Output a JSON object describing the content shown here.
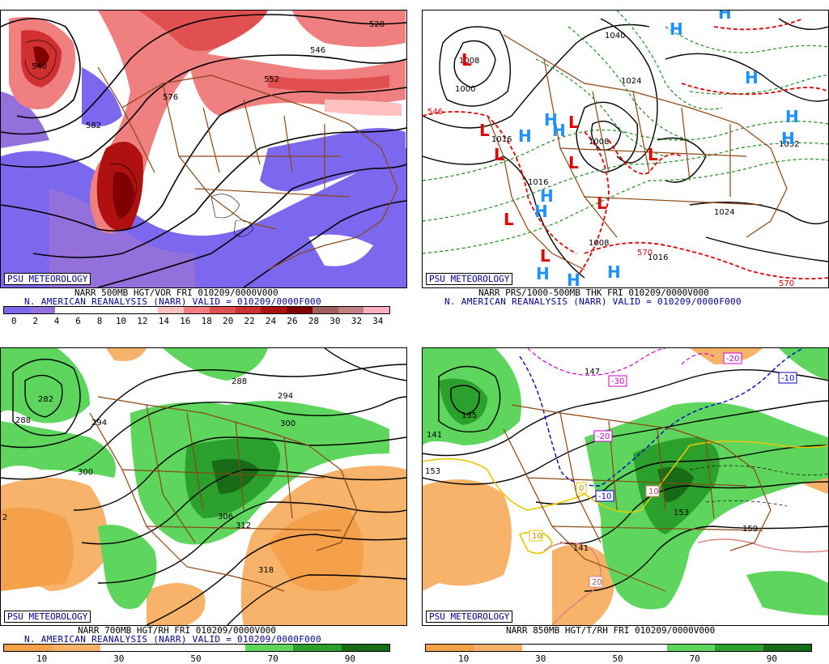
{
  "colors": {
    "vort_scale": [
      "#7b68ee",
      "#9370db",
      "#ffffff",
      "#ffffff",
      "#ffffff",
      "#ffffff",
      "#ffc0c0",
      "#f08080",
      "#e05050",
      "#d03030",
      "#b01010",
      "#800000",
      "#a06060",
      "#c08080",
      "#ffb0c0"
    ],
    "rh_scale": [
      "#f5a04a",
      "#f7b36a",
      "#ffffff",
      "#ffffff",
      "#ffffff",
      "#5ed65e",
      "#2ca02c",
      "#176b17"
    ]
  },
  "panels": [
    {
      "logo": "PSU METEOROLOGY",
      "caption1": "NARR 500MB HGT/VOR FRI 010209/0000V000",
      "caption2": "N. AMERICAN REANALYSIS (NARR) VALID = 010209/0000F000",
      "scale_labels": [
        "0",
        "2",
        "4",
        "6",
        "8",
        "10",
        "12",
        "14",
        "16",
        "18",
        "20",
        "22",
        "24",
        "26",
        "28",
        "30",
        "32",
        "34"
      ],
      "contour_labels": [
        "540",
        "528",
        "582",
        "552",
        "576",
        "546"
      ]
    },
    {
      "logo": "PSU METEOROLOGY",
      "caption1": "NARR PRS/1000-500MB THK FRI 010209/0000V000",
      "caption2": "N. AMERICAN REANALYSIS (NARR) VALID = 010209/0000F000",
      "contour_labels": [
        "1000",
        "1008",
        "1016",
        "1024",
        "1040",
        "1008",
        "1016",
        "1024",
        "1032",
        "546",
        "570",
        "570",
        "1008",
        "1016"
      ],
      "lows": [
        "L",
        "L",
        "L",
        "L",
        "L",
        "L",
        "L",
        "L",
        "L"
      ],
      "highs": [
        "H",
        "H",
        "H",
        "H",
        "H",
        "H",
        "H",
        "H",
        "H",
        "H",
        "H",
        "H",
        "H"
      ]
    },
    {
      "logo": "PSU METEOROLOGY",
      "caption1": "NARR 700MB HGT/RH FRI 010209/0000V000",
      "caption2": "N. AMERICAN REANALYSIS (NARR) VALID = 010209/0000F000",
      "scale_labels": [
        "10",
        "30",
        "50",
        "70",
        "90"
      ],
      "contour_labels": [
        "282",
        "288",
        "294",
        "288",
        "294",
        "300",
        "300",
        "306",
        "312",
        "318",
        "2"
      ]
    },
    {
      "logo": "PSU METEOROLOGY",
      "caption1": "NARR 850MB HGT/T/RH FRI 010209/0000V000",
      "caption2": "",
      "scale_labels": [
        "10",
        "30",
        "50",
        "70",
        "90"
      ],
      "contour_labels": [
        "135",
        "141",
        "147",
        "153",
        "153",
        "159",
        "141"
      ],
      "temp_labels": [
        "-30",
        "-20",
        "-20",
        "-10",
        "0",
        "10",
        "10",
        "20",
        "-10"
      ]
    }
  ]
}
